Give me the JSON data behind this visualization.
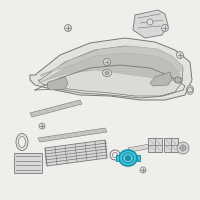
{
  "bg_color": "#f0eeea",
  "highlight_color": "#3ec8dc",
  "highlight_edge": "#1a8faa",
  "line_color": "#777777",
  "dark_color": "#444444",
  "light_gray": "#aaaaaa",
  "fill_gray": "#d8d8d8",
  "fill_light": "#e4e2de",
  "white": "#ffffff"
}
